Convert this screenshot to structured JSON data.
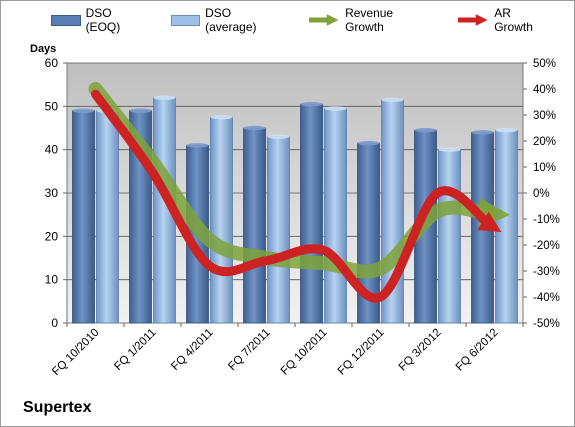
{
  "company": "Supertex",
  "chart_data": {
    "type": "bar",
    "title": "",
    "ylabel": "Days",
    "ylim": [
      0,
      60
    ],
    "y2lim": [
      -50,
      50
    ],
    "yticks": [
      "0",
      "10",
      "20",
      "30",
      "40",
      "50",
      "60"
    ],
    "y2ticks": [
      "-50%",
      "-40%",
      "-30%",
      "-20%",
      "-10%",
      "0%",
      "10%",
      "20%",
      "30%",
      "40%",
      "50%"
    ],
    "xtick_labels": [
      "FQ 10/2010",
      "FQ 1/2011",
      "FQ 4/2011",
      "FQ 7/2011",
      "FQ 10/2011",
      "FQ 12/2011",
      "FQ 3/2012",
      "FQ 6/2012"
    ],
    "categories": [
      "FQ 10/2010",
      "FQ 1/2011",
      "FQ 4/2011",
      "FQ 7/2011",
      "FQ 10/2011",
      "FQ 12/2011",
      "FQ 3/2012",
      "FQ 6/2012"
    ],
    "legend_position": "top",
    "grid": true,
    "series": [
      {
        "name": "DSO (EOQ)",
        "kind": "bar",
        "color": "#5a7fb5",
        "values": [
          49,
          49,
          41,
          45,
          50.5,
          41.5,
          44.5,
          44
        ]
      },
      {
        "name": "DSO (average)",
        "kind": "bar",
        "color": "#9ec0e6",
        "values": [
          49,
          52,
          47.5,
          43,
          49.5,
          51.5,
          40,
          44.5
        ]
      },
      {
        "name": "Revenue Growth",
        "kind": "line",
        "axis": "secondary",
        "color": "#7ea33a",
        "values": [
          40,
          12,
          -18,
          -25,
          -27,
          -29,
          -7,
          -8
        ]
      },
      {
        "name": "AR Growth",
        "kind": "line",
        "axis": "secondary",
        "color": "#cc2222",
        "values": [
          38,
          8,
          -28,
          -26,
          -22,
          -40,
          0,
          -12
        ]
      }
    ]
  }
}
